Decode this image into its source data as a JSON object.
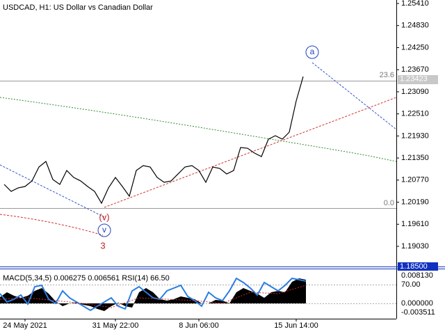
{
  "chart_data": {
    "type": "line",
    "title": "USDCAD, H1:  US Dollar vs Canadian Dollar",
    "categories": [
      null,
      null,
      null,
      "24 May 2021",
      null,
      null,
      null,
      null,
      null,
      null,
      null,
      null,
      null,
      null,
      null,
      null,
      "31 May 22:00",
      null,
      null,
      null,
      null,
      null,
      null,
      null,
      null,
      null,
      null,
      null,
      "8 Jun 06:00",
      null,
      null,
      null,
      null,
      null,
      null,
      null,
      null,
      null,
      null,
      null,
      null,
      null,
      "15 Jun 14:00",
      null
    ],
    "series": [
      {
        "name": "USDCAD",
        "color": "#000000",
        "values": [
          1.20657,
          1.20474,
          1.20565,
          1.20602,
          1.20748,
          1.21114,
          1.2126,
          1.20785,
          1.20657,
          1.21022,
          1.2084,
          1.20748,
          1.20602,
          1.20474,
          1.20163,
          1.20565,
          1.2084,
          1.20602,
          1.20346,
          1.21022,
          1.2115,
          1.21114,
          1.2084,
          1.20712,
          1.20748,
          1.20931,
          1.21114,
          1.2115,
          1.21022,
          1.20712,
          1.21114,
          1.21077,
          1.20931,
          1.21022,
          1.21626,
          1.21607,
          1.21479,
          1.21388,
          1.21845,
          1.21937,
          1.21845,
          1.22028,
          1.22851,
          1.2349
        ]
      }
    ],
    "ylim": [
      1.185,
      1.2541
    ],
    "yticks": [
      {
        "value": 1.2541,
        "label": "1.25410"
      },
      {
        "value": 1.2483,
        "label": "1.24830"
      },
      {
        "value": 1.2425,
        "label": "1.24250"
      },
      {
        "value": 1.2367,
        "label": "1.23670"
      },
      {
        "value": 1.2309,
        "label": "1.23090"
      },
      {
        "value": 1.2251,
        "label": "1.22510"
      },
      {
        "value": 1.2193,
        "label": "1.21930"
      },
      {
        "value": 1.2135,
        "label": "1.21350"
      },
      {
        "value": 1.2077,
        "label": "1.20770"
      },
      {
        "value": 1.2019,
        "label": "1.20190"
      },
      {
        "value": 1.1961,
        "label": "1.19610"
      },
      {
        "value": 1.1903,
        "label": "1.19030"
      }
    ],
    "current_price": 1.23423,
    "pane_separator_label": "1.18500",
    "annotations": [
      "a",
      "(v)",
      "v",
      "3",
      "23.6",
      "0.0"
    ],
    "indicator": {
      "title": "MACD(5,34,5) 0.006275 0.006561 RSI(14) 66.50",
      "scale_labels": [
        "0.008130",
        "70.00",
        "0.000000",
        "-0.003511"
      ]
    }
  }
}
